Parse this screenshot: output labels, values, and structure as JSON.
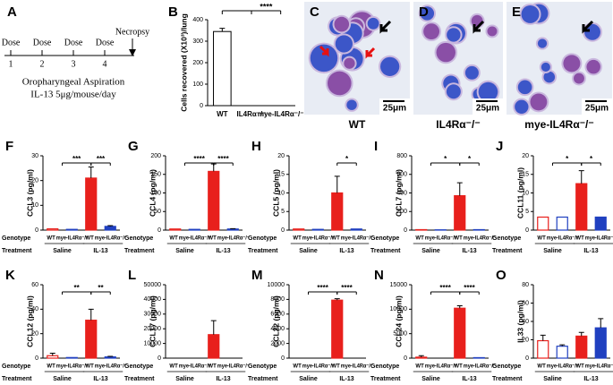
{
  "panel_a": {
    "panel": "A",
    "dose": "Dose",
    "dose_numbers": [
      "1",
      "2",
      "3",
      "4"
    ],
    "necropsy": "Necropsy",
    "route": "Oropharyngeal Aspiration",
    "regimen": "IL-13 5μg/mouse/day"
  },
  "images": [
    {
      "panel": "C",
      "label": "WT",
      "scale": "25μm"
    },
    {
      "panel": "D",
      "label": "IL4Rα⁻/⁻",
      "scale": "25μm"
    },
    {
      "panel": "E",
      "label": "mye-IL4Rα⁻/⁻",
      "scale": "25μm"
    }
  ],
  "groups": {
    "genotype": "Genotype",
    "treatment": "Treatment",
    "wt": "WT",
    "mye": "mye-IL4Rα⁻/⁻",
    "saline": "Saline",
    "il13": "IL-13",
    "colors": [
      "#e8201c",
      "#2040c0",
      "#e8201c",
      "#2040c0"
    ],
    "filled": [
      false,
      false,
      true,
      true
    ]
  },
  "chart_data": [
    {
      "type": "bar",
      "panel": "B",
      "ylabel": "Cells recovered (X10³)/lung",
      "categories": [
        "WT",
        "IL4Rα⁻/⁻",
        "mye-IL4Rα⁻/⁻"
      ],
      "values": [
        345,
        0,
        0
      ],
      "errors": [
        15,
        0,
        0
      ],
      "ylim": [
        0,
        400
      ],
      "yticks": [
        0,
        100,
        200,
        300,
        400
      ],
      "annotations": [
        "****"
      ],
      "color": "#000000"
    },
    {
      "type": "group-bar",
      "panel": "F",
      "ylabel": "CCL3 (pg/ml)",
      "values": [
        0.5,
        0.3,
        21,
        1.5
      ],
      "errors": [
        0,
        0,
        4.5,
        0.3
      ],
      "ylim": [
        0,
        30
      ],
      "yticks": [
        0,
        10,
        20,
        30
      ],
      "annotations": [
        "***",
        "***"
      ]
    },
    {
      "type": "group-bar",
      "panel": "G",
      "ylabel": "CCL4 (pg/ml)",
      "values": [
        3,
        2,
        158,
        3
      ],
      "errors": [
        0,
        0,
        20,
        1
      ],
      "ylim": [
        0,
        200
      ],
      "yticks": [
        0,
        50,
        100,
        150,
        200
      ],
      "annotations": [
        "****",
        "****"
      ]
    },
    {
      "type": "group-bar",
      "panel": "H",
      "ylabel": "CCL5 (pg/ml)",
      "values": [
        0.3,
        0.2,
        10,
        0.3
      ],
      "errors": [
        0,
        0,
        4.5,
        0
      ],
      "ylim": [
        0,
        20
      ],
      "yticks": [
        0,
        5,
        10,
        15,
        20
      ],
      "annotations": [
        "*"
      ]
    },
    {
      "type": "group-bar",
      "panel": "I",
      "ylabel": "CCL7 (pg/ml)",
      "values": [
        5,
        3,
        370,
        5
      ],
      "errors": [
        0,
        0,
        140,
        0
      ],
      "ylim": [
        0,
        800
      ],
      "yticks": [
        0,
        200,
        400,
        600,
        800
      ],
      "annotations": [
        "*",
        "*"
      ]
    },
    {
      "type": "group-bar",
      "panel": "J",
      "ylabel": "CCL11 (pg/ml)",
      "values": [
        3.5,
        3.5,
        12.5,
        3.5
      ],
      "errors": [
        0,
        0,
        3.5,
        0
      ],
      "ylim": [
        0,
        20
      ],
      "yticks": [
        0,
        5,
        10,
        15,
        20
      ],
      "annotations": [
        "*",
        "*"
      ]
    },
    {
      "type": "group-bar",
      "panel": "K",
      "ylabel": "CCL12 (pg/ml)",
      "values": [
        2,
        0.5,
        31,
        1
      ],
      "errors": [
        2,
        0,
        9,
        0.5
      ],
      "ylim": [
        0,
        60
      ],
      "yticks": [
        0,
        20,
        40,
        60
      ],
      "annotations": [
        "**",
        "**"
      ]
    },
    {
      "type": "group-bar",
      "panel": "L",
      "ylabel": "CCL17 (pg/ml)",
      "values": [
        0,
        0,
        16000,
        0
      ],
      "errors": [
        0,
        0,
        9500,
        0
      ],
      "ylim": [
        0,
        50000
      ],
      "yticks": [
        0,
        10000,
        20000,
        30000,
        40000,
        50000
      ],
      "annotations": []
    },
    {
      "type": "group-bar",
      "panel": "M",
      "ylabel": "CCL22 (pg/ml)",
      "values": [
        0,
        0,
        7900,
        0
      ],
      "errors": [
        0,
        0,
        200,
        0
      ],
      "ylim": [
        0,
        10000
      ],
      "yticks": [
        0,
        2000,
        4000,
        6000,
        8000,
        10000
      ],
      "annotations": [
        "****",
        "****"
      ]
    },
    {
      "type": "group-bar",
      "panel": "N",
      "ylabel": "CCL24 (pg/ml)",
      "values": [
        200,
        0,
        10200,
        100
      ],
      "errors": [
        300,
        0,
        500,
        0
      ],
      "ylim": [
        0,
        15000
      ],
      "yticks": [
        0,
        5000,
        10000,
        15000
      ],
      "annotations": [
        "****",
        "****"
      ]
    },
    {
      "type": "group-bar",
      "panel": "O",
      "ylabel": "IL33 (pg/ml)",
      "values": [
        19,
        13,
        24,
        33
      ],
      "errors": [
        6,
        1.5,
        4,
        10
      ],
      "ylim": [
        0,
        80
      ],
      "yticks": [
        0,
        20,
        40,
        60,
        80
      ],
      "annotations": []
    }
  ]
}
